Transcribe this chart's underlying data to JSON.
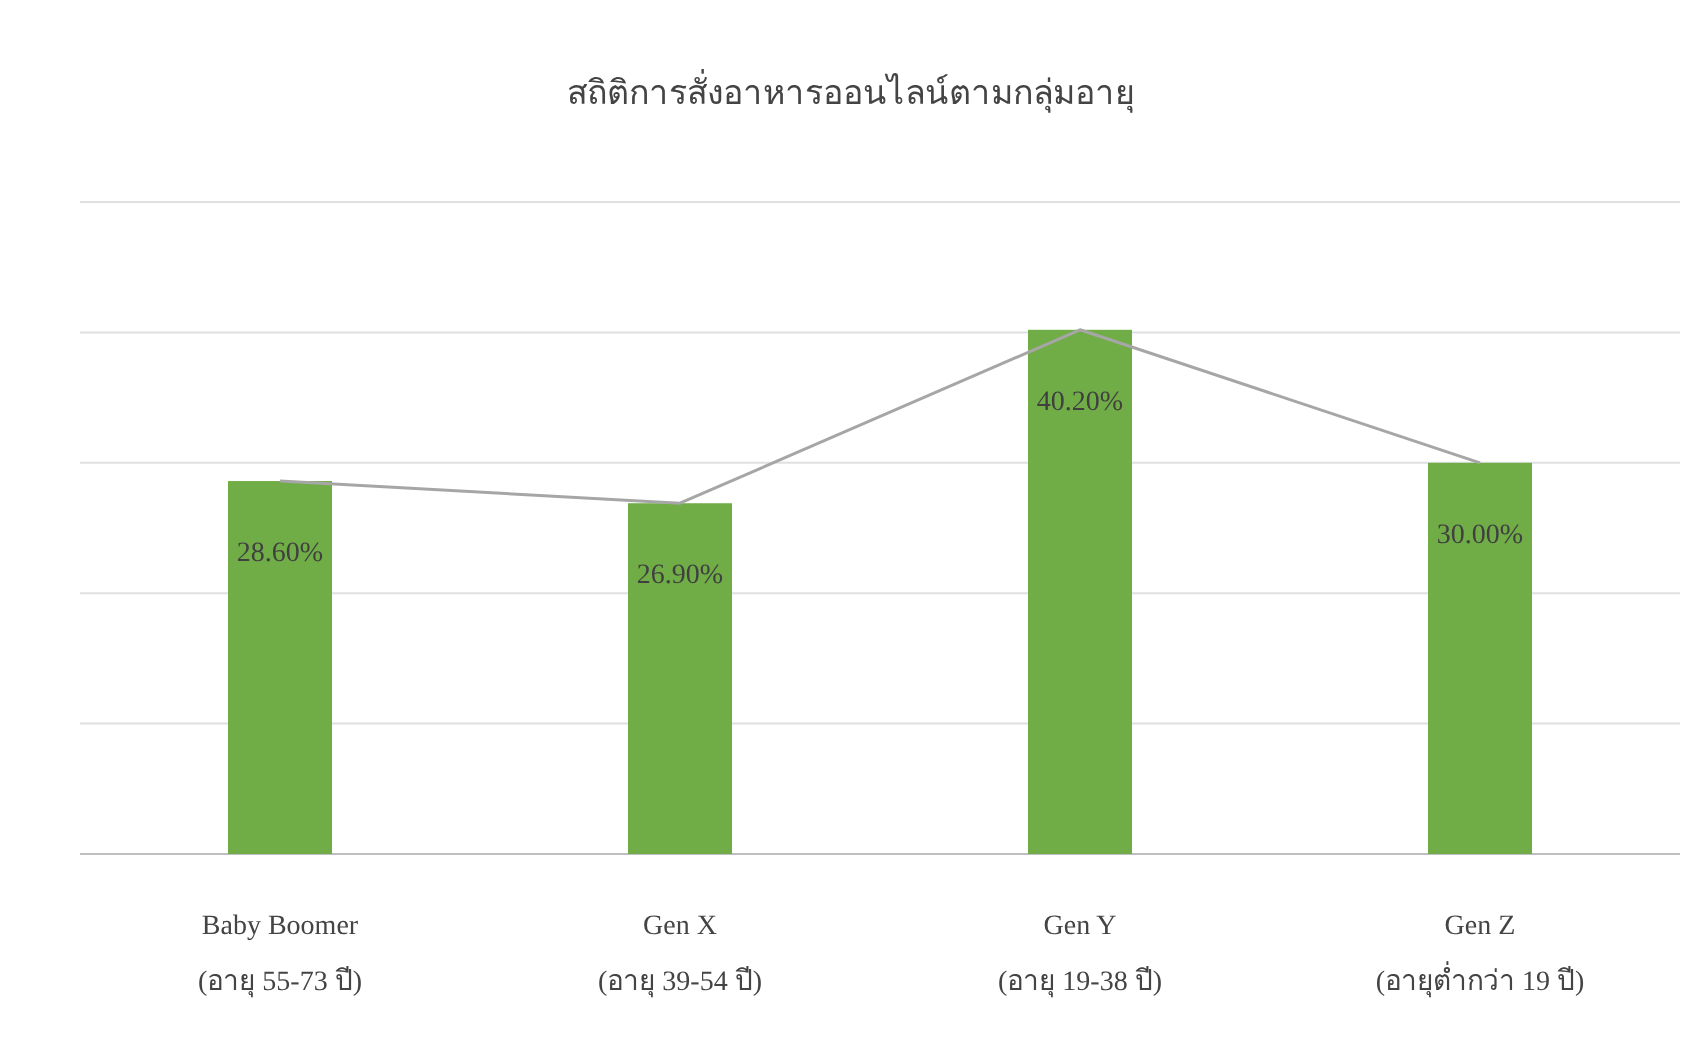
{
  "chart_data": {
    "type": "bar",
    "title": "สถิติการสั่งอาหารออนไลน์ตามกลุ่มอายุ",
    "categories": [
      "Baby Boomer\n(อายุ 55-73 ปี)",
      "Gen X\n(อายุ 39-54 ปี)",
      "Gen Y\n(อายุ 19-38 ปี)",
      "Gen Z\n(อายุต่ำกว่า 19 ปี)"
    ],
    "series": [
      {
        "color": "#70ad47",
        "values": [
          28.6,
          26.9,
          40.2,
          30.0
        ],
        "value_labels": [
          "28.60%",
          "26.90%",
          "40.20%",
          "30.00%"
        ]
      },
      {
        "type": "line",
        "color": "#a6a6a6",
        "values": [
          28.6,
          26.9,
          40.2,
          30.0
        ]
      }
    ],
    "ylim": [
      0,
      50
    ],
    "yticks": [
      {
        "value": 0,
        "label": null
      },
      {
        "value": 10,
        "label": null
      },
      {
        "value": 20,
        "label": null
      },
      {
        "value": 30,
        "label": null
      },
      {
        "value": 40,
        "label": null
      },
      {
        "value": 50,
        "label": null
      }
    ],
    "grid": "y",
    "marker": "none",
    "line_style": "solid"
  }
}
